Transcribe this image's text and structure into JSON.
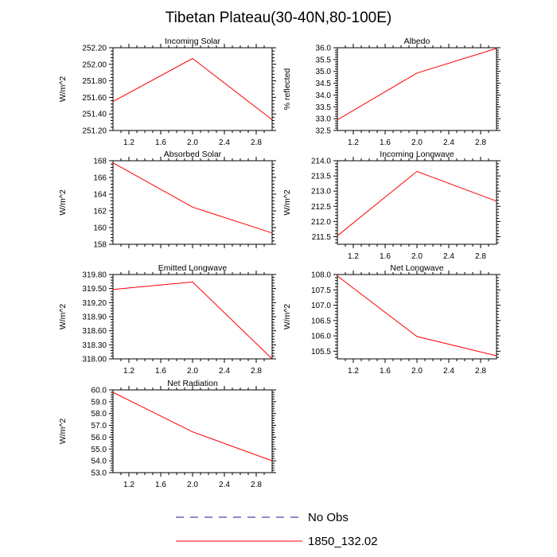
{
  "figure_title": "Tibetan Plateau(30-40N,80-100E)",
  "legend": {
    "items": [
      {
        "label": "No Obs",
        "color": "#1a1a8c",
        "style": "dashed"
      },
      {
        "label": "1850_132.02",
        "color": "#ff0000",
        "style": "solid"
      }
    ]
  },
  "chart_data": [
    {
      "type": "line",
      "title": "Incoming Solar",
      "ylabel": "W/m^2",
      "x": [
        1,
        2,
        3
      ],
      "xlim": [
        1,
        3
      ],
      "xticks": [
        1.2,
        1.6,
        2.0,
        2.4,
        2.8
      ],
      "xtick_labels": [
        "1.2",
        "1.6",
        "2.0",
        "2.4",
        "2.8"
      ],
      "ylim": [
        251.2,
        252.2
      ],
      "yticks": [
        251.2,
        251.4,
        251.6,
        251.8,
        252.0,
        252.2
      ],
      "ytick_labels": [
        "251.20",
        "251.40",
        "251.60",
        "251.80",
        "252.00",
        "252.20"
      ],
      "series": [
        {
          "name": "1850_132.02",
          "color": "#ff0000",
          "values": [
            251.55,
            252.07,
            251.33
          ]
        }
      ]
    },
    {
      "type": "line",
      "title": "Albedo",
      "ylabel": "% reflected",
      "x": [
        1,
        2,
        3
      ],
      "xlim": [
        1,
        3
      ],
      "xticks": [
        1.2,
        1.6,
        2.0,
        2.4,
        2.8
      ],
      "xtick_labels": [
        "1.2",
        "1.6",
        "2.0",
        "2.4",
        "2.8"
      ],
      "ylim": [
        32.5,
        36.0
      ],
      "yticks": [
        32.5,
        33.0,
        33.5,
        34.0,
        34.5,
        35.0,
        35.5,
        36.0
      ],
      "ytick_labels": [
        "32.5",
        "33.0",
        "33.5",
        "34.0",
        "34.5",
        "35.0",
        "35.5",
        "36.0"
      ],
      "series": [
        {
          "name": "1850_132.02",
          "color": "#ff0000",
          "values": [
            32.95,
            34.93,
            35.97
          ]
        }
      ]
    },
    {
      "type": "line",
      "title": "Absorbed Solar",
      "ylabel": "W/m^2",
      "x": [
        1,
        2,
        3
      ],
      "xlim": [
        1,
        3
      ],
      "xticks": [
        1.2,
        1.6,
        2.0,
        2.4,
        2.8
      ],
      "xtick_labels": [
        "1.2",
        "1.6",
        "2.0",
        "2.4",
        "2.8"
      ],
      "ylim": [
        158,
        168
      ],
      "yticks": [
        158,
        160,
        162,
        164,
        166,
        168
      ],
      "ytick_labels": [
        "158",
        "160",
        "162",
        "164",
        "166",
        "168"
      ],
      "series": [
        {
          "name": "1850_132.02",
          "color": "#ff0000",
          "values": [
            167.75,
            162.45,
            159.35
          ]
        }
      ]
    },
    {
      "type": "line",
      "title": "Incoming Longwave",
      "ylabel": "W/m^2",
      "x": [
        1,
        2,
        3
      ],
      "xlim": [
        1,
        3
      ],
      "xticks": [
        1.2,
        1.6,
        2.0,
        2.4,
        2.8
      ],
      "xtick_labels": [
        "1.2",
        "1.6",
        "2.0",
        "2.4",
        "2.8"
      ],
      "ylim": [
        211.25,
        214.0
      ],
      "yticks": [
        211.5,
        212.0,
        212.5,
        213.0,
        213.5,
        214.0
      ],
      "ytick_labels": [
        "211.5",
        "212.0",
        "212.5",
        "213.0",
        "213.5",
        "214.0"
      ],
      "series": [
        {
          "name": "1850_132.02",
          "color": "#ff0000",
          "values": [
            211.53,
            213.65,
            212.67
          ]
        }
      ]
    },
    {
      "type": "line",
      "title": "Emitted Longwave",
      "ylabel": "W/m^2",
      "x": [
        1,
        2,
        3
      ],
      "xlim": [
        1,
        3
      ],
      "xticks": [
        1.2,
        1.6,
        2.0,
        2.4,
        2.8
      ],
      "xtick_labels": [
        "1.2",
        "1.6",
        "2.0",
        "2.4",
        "2.8"
      ],
      "ylim": [
        318.0,
        319.8
      ],
      "yticks": [
        318.0,
        318.3,
        318.6,
        318.9,
        319.2,
        319.5,
        319.8
      ],
      "ytick_labels": [
        "318.00",
        "318.30",
        "318.60",
        "318.90",
        "319.20",
        "319.50",
        "319.80"
      ],
      "series": [
        {
          "name": "1850_132.02",
          "color": "#ff0000",
          "values": [
            319.48,
            319.64,
            318.0
          ]
        }
      ]
    },
    {
      "type": "line",
      "title": "Net Longwave",
      "ylabel": "W/m^2",
      "x": [
        1,
        2,
        3
      ],
      "xlim": [
        1,
        3
      ],
      "xticks": [
        1.2,
        1.6,
        2.0,
        2.4,
        2.8
      ],
      "xtick_labels": [
        "1.2",
        "1.6",
        "2.0",
        "2.4",
        "2.8"
      ],
      "ylim": [
        105.25,
        108.0
      ],
      "yticks": [
        105.5,
        106.0,
        106.5,
        107.0,
        107.5,
        108.0
      ],
      "ytick_labels": [
        "105.5",
        "106.0",
        "106.5",
        "107.0",
        "107.5",
        "108.0"
      ],
      "series": [
        {
          "name": "1850_132.02",
          "color": "#ff0000",
          "values": [
            107.95,
            105.98,
            105.35
          ]
        }
      ]
    },
    {
      "type": "line",
      "title": "Net Radiation",
      "ylabel": "W/m^2",
      "x": [
        1,
        2,
        3
      ],
      "xlim": [
        1,
        3
      ],
      "xticks": [
        1.2,
        1.6,
        2.0,
        2.4,
        2.8
      ],
      "xtick_labels": [
        "1.2",
        "1.6",
        "2.0",
        "2.4",
        "2.8"
      ],
      "ylim": [
        53.0,
        60.0
      ],
      "yticks": [
        53.0,
        54.0,
        55.0,
        56.0,
        57.0,
        58.0,
        59.0,
        60.0
      ],
      "ytick_labels": [
        "53.0",
        "54.0",
        "55.0",
        "56.0",
        "57.0",
        "58.0",
        "59.0",
        "60.0"
      ],
      "series": [
        {
          "name": "1850_132.02",
          "color": "#ff0000",
          "values": [
            59.8,
            56.45,
            54.0
          ]
        }
      ]
    }
  ]
}
